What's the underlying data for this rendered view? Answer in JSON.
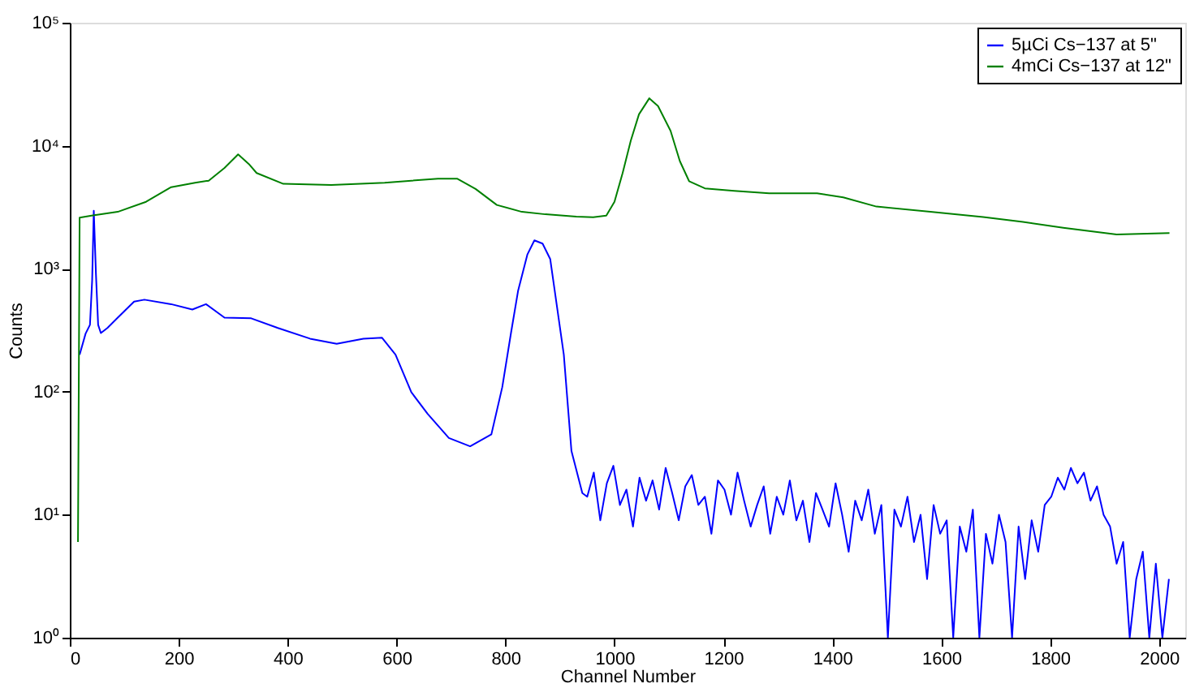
{
  "chart_data": {
    "type": "line",
    "xlabel": "Channel Number",
    "ylabel": "Counts",
    "xlim": [
      0,
      2048
    ],
    "xticks": [
      0,
      200,
      400,
      600,
      800,
      1000,
      1200,
      1400,
      1600,
      1800,
      2000
    ],
    "log": "y",
    "ylim": [
      1,
      100000
    ],
    "yticks": [
      {
        "value": 1,
        "label": "10⁰"
      },
      {
        "value": 10,
        "label": "10¹"
      },
      {
        "value": 100,
        "label": "10²"
      },
      {
        "value": 1000,
        "label": "10³"
      },
      {
        "value": 10000,
        "label": "10⁴"
      },
      {
        "value": 100000,
        "label": "10⁵"
      }
    ],
    "grid": false,
    "legend": "top right",
    "line_style": "solid",
    "marker": "none",
    "series": [
      {
        "name": "5µCi Cs−137 at 5\"",
        "color": "#0000ff",
        "x": [
          18,
          29,
          37,
          41,
          44,
          48,
          52,
          57,
          69,
          88,
          118,
          137,
          186,
          225,
          250,
          284,
          333,
          382,
          441,
          490,
          539,
          573,
          598,
          627,
          657,
          696,
          735,
          774,
          794,
          810,
          823,
          840,
          853,
          868,
          882,
          907,
          921,
          941,
          950,
          962,
          974,
          986,
          998,
          1010,
          1022,
          1034,
          1046,
          1058,
          1070,
          1082,
          1094,
          1106,
          1118,
          1130,
          1142,
          1154,
          1166,
          1178,
          1190,
          1202,
          1214,
          1226,
          1238,
          1250,
          1262,
          1274,
          1286,
          1298,
          1310,
          1322,
          1334,
          1346,
          1358,
          1370,
          1382,
          1394,
          1406,
          1418,
          1430,
          1442,
          1454,
          1466,
          1478,
          1490,
          1502,
          1514,
          1526,
          1538,
          1550,
          1562,
          1574,
          1586,
          1598,
          1610,
          1622,
          1634,
          1646,
          1658,
          1670,
          1682,
          1694,
          1706,
          1718,
          1730,
          1742,
          1754,
          1766,
          1778,
          1790,
          1802,
          1814,
          1826,
          1838,
          1850,
          1862,
          1874,
          1886,
          1898,
          1910,
          1922,
          1934,
          1946,
          1958,
          1970,
          1982,
          1994,
          2006,
          2018
        ],
        "values": [
          200,
          297,
          350,
          800,
          2960,
          900,
          350,
          300,
          330,
          400,
          540,
          560,
          515,
          466,
          515,
          400,
          395,
          330,
          270,
          245,
          270,
          275,
          200,
          99,
          66,
          42,
          36,
          45,
          109,
          300,
          660,
          1300,
          1700,
          1600,
          1200,
          200,
          33,
          15,
          14,
          22,
          9,
          18,
          25,
          12,
          16,
          8,
          20,
          13,
          19,
          11,
          24,
          15,
          9,
          17,
          21,
          12,
          14,
          7,
          19,
          16,
          10,
          22,
          13,
          8,
          12,
          17,
          7,
          14,
          10,
          19,
          9,
          13,
          6,
          15,
          11,
          8,
          18,
          10,
          5,
          13,
          9,
          16,
          7,
          12,
          1,
          11,
          8,
          14,
          6,
          10,
          3,
          12,
          7,
          9,
          1,
          8,
          5,
          11,
          1,
          7,
          4,
          10,
          6,
          1,
          8,
          3,
          9,
          5,
          12,
          14,
          20,
          16,
          24,
          18,
          22,
          13,
          17,
          10,
          8,
          4,
          6,
          1,
          3,
          5,
          1,
          4,
          1,
          3
        ]
      },
      {
        "name": "4mCi Cs−137 at 12\"",
        "color": "#008000",
        "x": [
          15,
          18,
          40,
          88,
          140,
          186,
          230,
          255,
          284,
          309,
          330,
          343,
          392,
          480,
          578,
          676,
          711,
          745,
          784,
          830,
          873,
          930,
          961,
          985,
          1000,
          1015,
          1030,
          1045,
          1064,
          1080,
          1103,
          1120,
          1137,
          1166,
          1220,
          1284,
          1372,
          1420,
          1481,
          1580,
          1677,
          1750,
          1824,
          1922,
          2019
        ],
        "values": [
          6,
          2600,
          2700,
          2900,
          3500,
          4600,
          5000,
          5200,
          6600,
          8500,
          7000,
          6000,
          4900,
          4800,
          5000,
          5400,
          5400,
          4450,
          3300,
          2900,
          2770,
          2650,
          2620,
          2700,
          3500,
          6000,
          11000,
          18000,
          24300,
          21000,
          13200,
          7500,
          5150,
          4500,
          4300,
          4100,
          4100,
          3800,
          3200,
          2900,
          2630,
          2400,
          2150,
          1900,
          1950
        ]
      }
    ]
  }
}
